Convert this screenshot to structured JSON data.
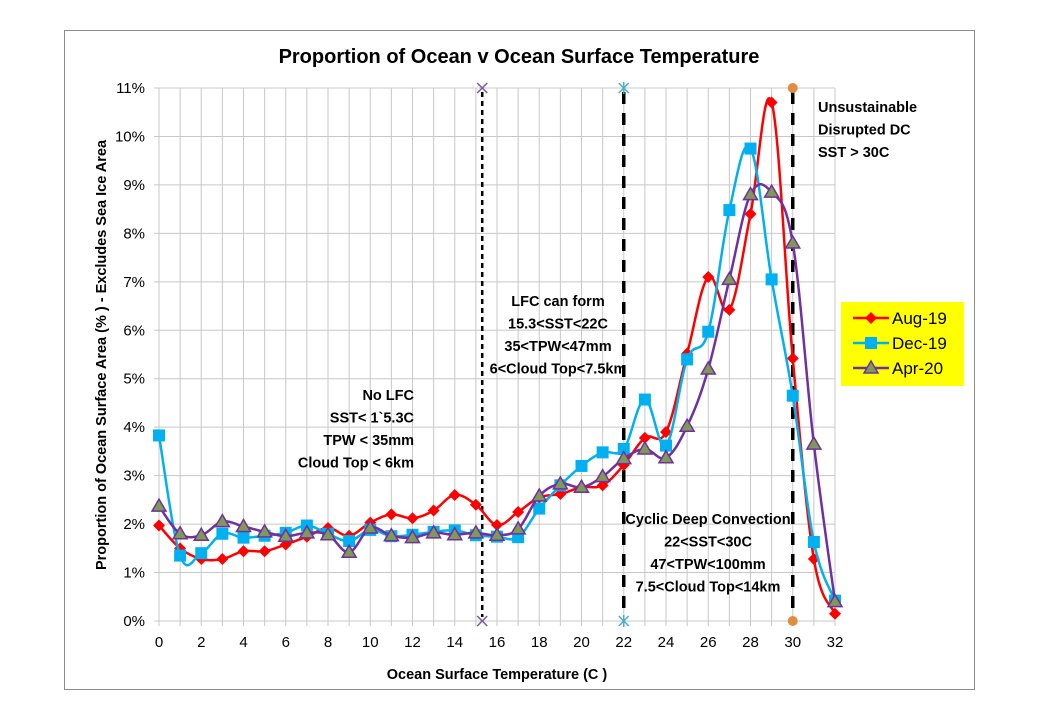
{
  "chart_data": {
    "type": "line",
    "title": "Proportion of Ocean v Ocean Surface Temperature",
    "xlabel": "Ocean Surface Temperature (C )",
    "ylabel": "Proportion of Ocean Surface Area (% ) - Excludes Sea Ice Area",
    "xlim": [
      0,
      32
    ],
    "ylim": [
      0,
      11
    ],
    "grid": true,
    "x_ticks": [
      0,
      2,
      4,
      6,
      8,
      10,
      12,
      14,
      16,
      18,
      20,
      22,
      24,
      26,
      28,
      30,
      32
    ],
    "y_ticks": [
      "0%",
      "1%",
      "2%",
      "3%",
      "4%",
      "5%",
      "6%",
      "7%",
      "8%",
      "9%",
      "10%",
      "11%"
    ],
    "x": [
      0,
      1,
      2,
      3,
      4,
      5,
      6,
      7,
      8,
      9,
      10,
      11,
      12,
      13,
      14,
      15,
      16,
      17,
      18,
      19,
      20,
      21,
      22,
      23,
      24,
      25,
      26,
      27,
      28,
      29,
      30,
      31,
      32
    ],
    "series": [
      {
        "name": "Aug-19",
        "color": "#ff0000",
        "marker": "diamond",
        "values": [
          1.97,
          1.5,
          1.28,
          1.28,
          1.44,
          1.44,
          1.58,
          1.74,
          1.92,
          1.76,
          2.03,
          2.2,
          2.12,
          2.28,
          2.6,
          2.4,
          1.98,
          2.25,
          2.55,
          2.62,
          2.76,
          2.8,
          3.22,
          3.78,
          3.9,
          5.52,
          7.1,
          6.42,
          8.4,
          10.7,
          5.42,
          1.28,
          0.15
        ]
      },
      {
        "name": "Dec-19",
        "color": "#00b0f0",
        "marker": "square",
        "values": [
          3.83,
          1.35,
          1.4,
          1.8,
          1.72,
          1.76,
          1.82,
          1.97,
          1.8,
          1.65,
          1.88,
          1.75,
          1.78,
          1.84,
          1.87,
          1.77,
          1.74,
          1.73,
          2.32,
          2.8,
          3.2,
          3.48,
          3.55,
          4.57,
          3.62,
          5.4,
          5.97,
          8.48,
          9.75,
          7.05,
          4.65,
          1.63,
          0.42
        ]
      },
      {
        "name": "Apr-20",
        "color": "#7030a0",
        "marker": "triangle",
        "marker_fill": "#7f9a54",
        "values": [
          2.37,
          1.8,
          1.77,
          2.05,
          1.95,
          1.84,
          1.75,
          1.82,
          1.78,
          1.42,
          1.92,
          1.76,
          1.72,
          1.82,
          1.78,
          1.82,
          1.77,
          1.9,
          2.58,
          2.83,
          2.76,
          2.98,
          3.35,
          3.55,
          3.37,
          4.02,
          5.2,
          7.05,
          8.8,
          8.85,
          7.8,
          3.65,
          0.4
        ]
      }
    ],
    "reference_lines": [
      {
        "x": 15.3,
        "style": "short-dash",
        "marker": "x",
        "marker_color": "#7a5a9c"
      },
      {
        "x": 22,
        "style": "long-dash",
        "marker": "asterisk",
        "marker_color": "#4aaec8"
      },
      {
        "x": 30,
        "style": "long-dash",
        "marker": "circle",
        "marker_color": "#e28c3f"
      }
    ],
    "legend": {
      "placement": "right",
      "background": "#ffff00",
      "entries": [
        "Aug-19",
        "Dec-19",
        "Apr-20"
      ]
    },
    "annotations": [
      {
        "id": "no-lfc",
        "lines": [
          "No LFC",
          "SST< 1`5.3C",
          "TPW < 35mm",
          "Cloud Top < 6km"
        ]
      },
      {
        "id": "lfc-can-form",
        "lines": [
          "LFC can form",
          "15.3<SST<22C",
          "35<TPW<47mm",
          "6<Cloud Top<7.5km"
        ]
      },
      {
        "id": "cyclic-deep-convection",
        "lines": [
          "Cyclic Deep Convection",
          "22<SST<30C",
          "47<TPW<100mm",
          "7.5<Cloud Top<14km"
        ]
      },
      {
        "id": "unsustainable",
        "lines": [
          "Unsustainable",
          "Disrupted DC",
          "SST > 30C"
        ]
      }
    ]
  }
}
